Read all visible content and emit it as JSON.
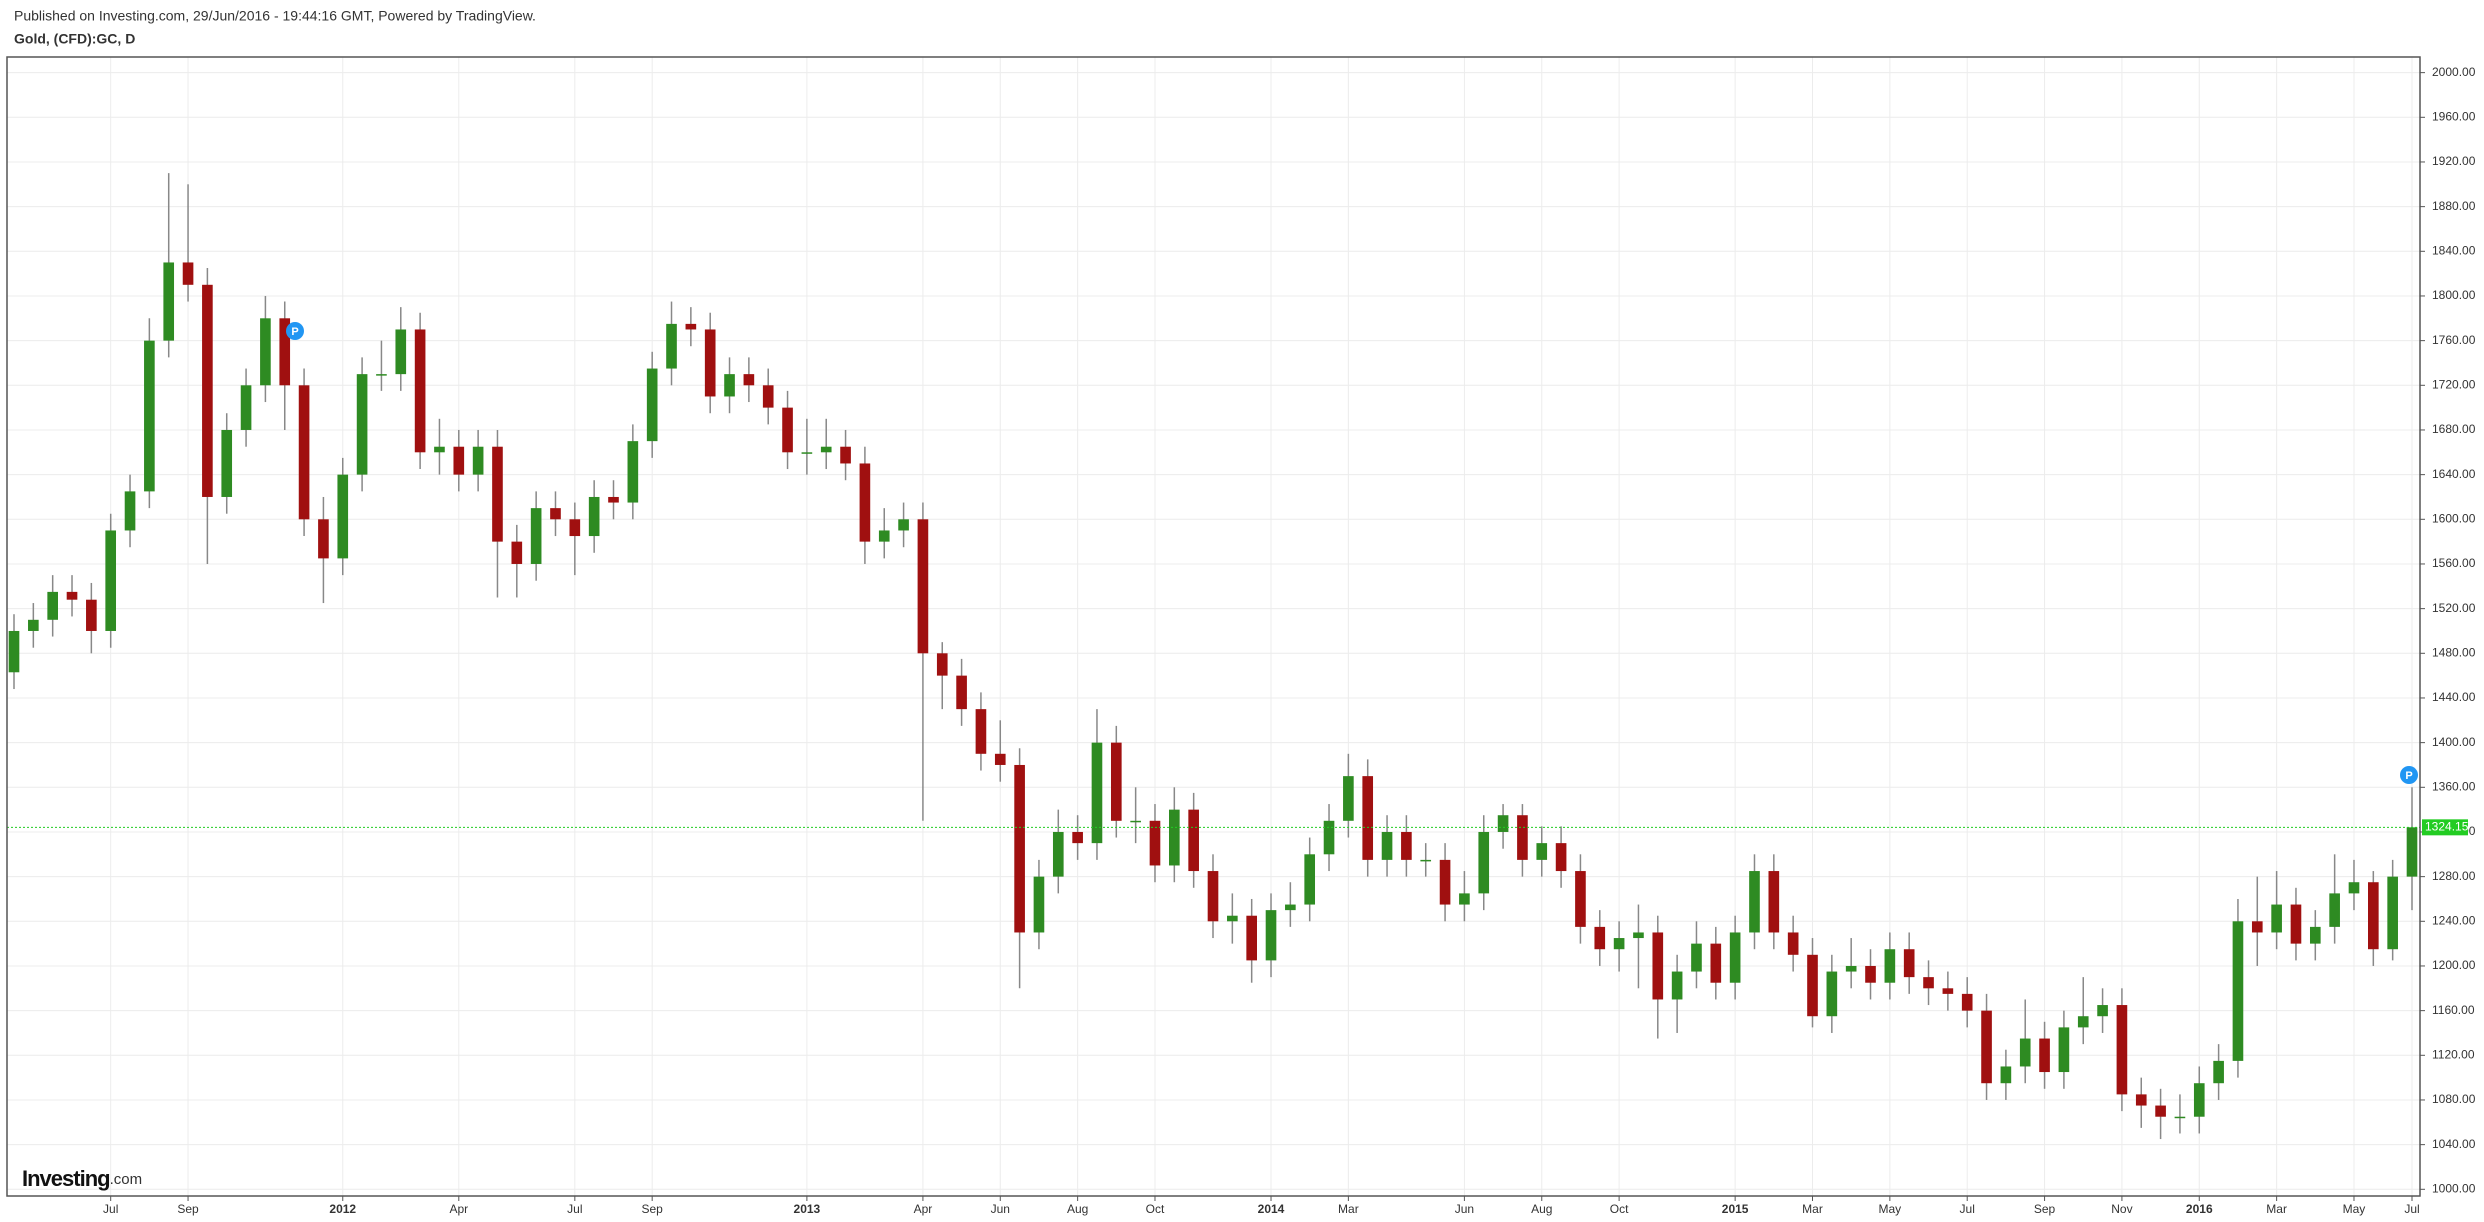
{
  "header": {
    "published": "Published on Investing.com, 29/Jun/2016 - 19:44:16 GMT, Powered by TradingView.",
    "symbol": "Gold, (CFD):GC, D"
  },
  "watermark": {
    "brand": "Investing",
    "suffix": ".com"
  },
  "annotations": [
    "P",
    "P"
  ],
  "chart_data": {
    "type": "candlestick",
    "up_color": "#2e8b22",
    "down_color": "#a01010",
    "wick_color": "#888888",
    "last_price_color": "#22cc22",
    "grid": true,
    "categories": [
      null,
      null,
      null,
      null,
      null,
      "Jul",
      null,
      null,
      null,
      "Sep",
      null,
      null,
      null,
      null,
      null,
      null,
      null,
      "2012",
      null,
      null,
      null,
      null,
      null,
      "Apr",
      null,
      null,
      null,
      null,
      null,
      "Jul",
      null,
      null,
      null,
      "Sep",
      null,
      null,
      null,
      null,
      null,
      null,
      null,
      "2013",
      null,
      null,
      null,
      null,
      null,
      "Apr",
      null,
      null,
      null,
      "Jun",
      null,
      null,
      null,
      "Aug",
      null,
      null,
      null,
      "Oct",
      null,
      null,
      null,
      null,
      null,
      "2014",
      null,
      null,
      null,
      "Mar",
      null,
      null,
      null,
      null,
      null,
      "Jun",
      null,
      null,
      null,
      "Aug",
      null,
      null,
      null,
      "Oct",
      null,
      null,
      null,
      null,
      null,
      "2015",
      null,
      null,
      null,
      "Mar",
      null,
      null,
      null,
      "May",
      null,
      null,
      null,
      "Jul",
      null,
      null,
      null,
      "Sep",
      null,
      null,
      null,
      "Nov",
      null,
      null,
      null,
      "2016",
      null,
      null,
      null,
      "Mar",
      null,
      null,
      null,
      "May",
      null,
      null,
      "Jul"
    ],
    "open": [
      1463,
      1500,
      1510,
      1535,
      1528,
      1500,
      1590,
      1625,
      1760,
      1830,
      1810,
      1620,
      1680,
      1720,
      1780,
      1720,
      1600,
      1565,
      1640,
      1730,
      1730,
      1770,
      1660,
      1665,
      1640,
      1665,
      1580,
      1560,
      1610,
      1600,
      1585,
      1620,
      1615,
      1670,
      1735,
      1775,
      1770,
      1710,
      1730,
      1720,
      1700,
      1660,
      1660,
      1665,
      1650,
      1580,
      1590,
      1600,
      1480,
      1460,
      1430,
      1390,
      1380,
      1230,
      1280,
      1320,
      1310,
      1400,
      1330,
      1330,
      1290,
      1340,
      1285,
      1240,
      1245,
      1205,
      1250,
      1255,
      1300,
      1330,
      1370,
      1295,
      1320,
      1295,
      1295,
      1255,
      1265,
      1320,
      1335,
      1295,
      1310,
      1285,
      1235,
      1215,
      1225,
      1230,
      1170,
      1195,
      1220,
      1185,
      1230,
      1285,
      1230,
      1210,
      1155,
      1195,
      1200,
      1185,
      1215,
      1190,
      1180,
      1175,
      1160,
      1095,
      1110,
      1135,
      1105,
      1145,
      1155,
      1165,
      1085,
      1075,
      1065,
      1065,
      1095,
      1115,
      1240,
      1230,
      1255,
      1220,
      1235,
      1265,
      1275,
      1215,
      1280
    ],
    "high": [
      1515,
      1525,
      1550,
      1550,
      1543,
      1605,
      1640,
      1780,
      1910,
      1900,
      1825,
      1695,
      1735,
      1800,
      1795,
      1735,
      1620,
      1655,
      1745,
      1760,
      1790,
      1785,
      1690,
      1680,
      1680,
      1680,
      1595,
      1625,
      1625,
      1615,
      1635,
      1635,
      1685,
      1750,
      1795,
      1790,
      1785,
      1745,
      1745,
      1735,
      1715,
      1690,
      1690,
      1680,
      1665,
      1610,
      1615,
      1615,
      1490,
      1475,
      1445,
      1420,
      1395,
      1295,
      1340,
      1335,
      1430,
      1415,
      1360,
      1345,
      1360,
      1355,
      1300,
      1265,
      1260,
      1265,
      1275,
      1315,
      1345,
      1390,
      1385,
      1335,
      1335,
      1310,
      1310,
      1285,
      1335,
      1345,
      1345,
      1325,
      1325,
      1300,
      1250,
      1240,
      1255,
      1245,
      1210,
      1240,
      1235,
      1245,
      1300,
      1300,
      1245,
      1225,
      1210,
      1225,
      1215,
      1230,
      1230,
      1205,
      1195,
      1190,
      1175,
      1125,
      1170,
      1150,
      1160,
      1190,
      1180,
      1180,
      1100,
      1090,
      1085,
      1110,
      1130,
      1260,
      1280,
      1285,
      1270,
      1250,
      1300,
      1295,
      1285,
      1295,
      1360
    ],
    "low": [
      1448,
      1485,
      1495,
      1513,
      1480,
      1485,
      1575,
      1610,
      1745,
      1795,
      1560,
      1605,
      1665,
      1705,
      1680,
      1585,
      1525,
      1550,
      1625,
      1715,
      1715,
      1645,
      1640,
      1625,
      1625,
      1530,
      1530,
      1545,
      1585,
      1550,
      1570,
      1600,
      1600,
      1655,
      1720,
      1755,
      1695,
      1695,
      1705,
      1685,
      1645,
      1640,
      1645,
      1635,
      1560,
      1565,
      1575,
      1330,
      1430,
      1415,
      1375,
      1365,
      1180,
      1215,
      1265,
      1295,
      1295,
      1315,
      1310,
      1275,
      1275,
      1270,
      1225,
      1220,
      1185,
      1190,
      1235,
      1240,
      1285,
      1315,
      1280,
      1280,
      1280,
      1280,
      1240,
      1240,
      1250,
      1305,
      1280,
      1280,
      1270,
      1220,
      1200,
      1195,
      1180,
      1135,
      1140,
      1180,
      1170,
      1170,
      1215,
      1215,
      1195,
      1145,
      1140,
      1180,
      1170,
      1170,
      1175,
      1165,
      1160,
      1145,
      1080,
      1080,
      1095,
      1090,
      1090,
      1130,
      1140,
      1070,
      1055,
      1045,
      1050,
      1050,
      1080,
      1100,
      1200,
      1215,
      1205,
      1205,
      1220,
      1250,
      1200,
      1205,
      1250
    ],
    "close": [
      1500,
      1510,
      1535,
      1528,
      1500,
      1590,
      1625,
      1760,
      1830,
      1810,
      1620,
      1680,
      1720,
      1780,
      1720,
      1600,
      1565,
      1640,
      1730,
      1730,
      1770,
      1660,
      1665,
      1640,
      1665,
      1580,
      1560,
      1610,
      1600,
      1585,
      1620,
      1615,
      1670,
      1735,
      1775,
      1770,
      1710,
      1730,
      1720,
      1700,
      1660,
      1660,
      1665,
      1650,
      1580,
      1590,
      1600,
      1480,
      1460,
      1430,
      1390,
      1380,
      1230,
      1280,
      1320,
      1310,
      1400,
      1330,
      1330,
      1290,
      1340,
      1285,
      1240,
      1245,
      1205,
      1250,
      1255,
      1300,
      1330,
      1370,
      1295,
      1320,
      1295,
      1295,
      1255,
      1265,
      1320,
      1335,
      1295,
      1310,
      1285,
      1235,
      1215,
      1225,
      1230,
      1170,
      1195,
      1220,
      1185,
      1230,
      1285,
      1230,
      1210,
      1155,
      1195,
      1200,
      1185,
      1215,
      1190,
      1180,
      1175,
      1160,
      1095,
      1110,
      1135,
      1105,
      1145,
      1155,
      1165,
      1085,
      1075,
      1065,
      1065,
      1095,
      1115,
      1240,
      1230,
      1255,
      1220,
      1235,
      1265,
      1275,
      1215,
      1280,
      1324.15
    ],
    "ylim": [
      994,
      2014
    ],
    "yticks": [
      {
        "value": 1000,
        "label": "1000.00"
      },
      {
        "value": 1040,
        "label": "1040.00"
      },
      {
        "value": 1080,
        "label": "1080.00"
      },
      {
        "value": 1120,
        "label": "1120.00"
      },
      {
        "value": 1160,
        "label": "1160.00"
      },
      {
        "value": 1200,
        "label": "1200.00"
      },
      {
        "value": 1240,
        "label": "1240.00"
      },
      {
        "value": 1280,
        "label": "1280.00"
      },
      {
        "value": 1320,
        "label": "1320.00"
      },
      {
        "value": 1360,
        "label": "1360.00"
      },
      {
        "value": 1400,
        "label": "1400.00"
      },
      {
        "value": 1440,
        "label": "1440.00"
      },
      {
        "value": 1480,
        "label": "1480.00"
      },
      {
        "value": 1520,
        "label": "1520.00"
      },
      {
        "value": 1560,
        "label": "1560.00"
      },
      {
        "value": 1600,
        "label": "1600.00"
      },
      {
        "value": 1640,
        "label": "1640.00"
      },
      {
        "value": 1680,
        "label": "1680.00"
      },
      {
        "value": 1720,
        "label": "1720.00"
      },
      {
        "value": 1760,
        "label": "1760.00"
      },
      {
        "value": 1800,
        "label": "1800.00"
      },
      {
        "value": 1840,
        "label": "1840.00"
      },
      {
        "value": 1880,
        "label": "1880.00"
      },
      {
        "value": 1920,
        "label": "1920.00"
      },
      {
        "value": 1960,
        "label": "1960.00"
      },
      {
        "value": 2000,
        "label": "2000.00"
      }
    ]
  }
}
